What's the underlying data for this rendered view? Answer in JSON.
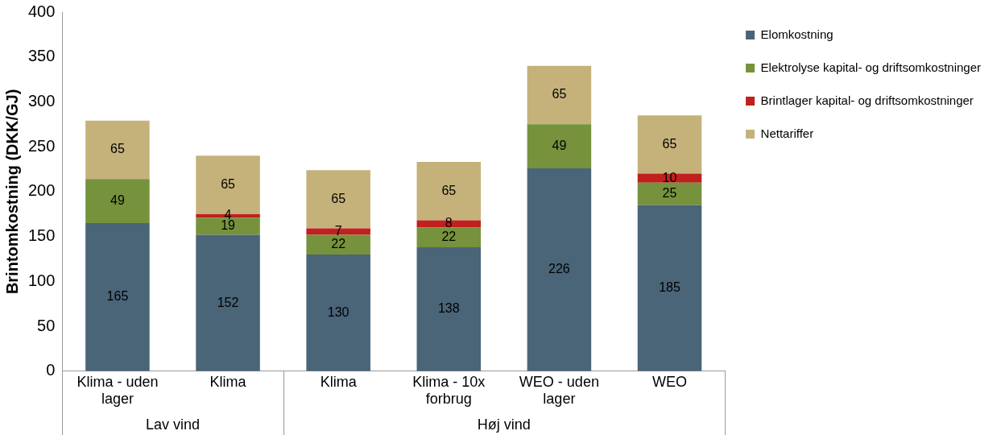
{
  "chart_data": {
    "type": "bar",
    "stacked": true,
    "ylabel": "Brintomkostning (DKK/GJ)",
    "categories": [
      "Klima - uden lager",
      "Klima",
      "Klima",
      "Klima - 10x forbrug",
      "WEO - uden lager",
      "WEO"
    ],
    "series": [
      {
        "name": "Elomkostning",
        "color": "#4a6478",
        "values": [
          165,
          152,
          130,
          138,
          226,
          185
        ]
      },
      {
        "name": "Elektrolyse kapital- og driftsomkostninger",
        "color": "#76923c",
        "values": [
          49,
          19,
          22,
          22,
          49,
          25
        ]
      },
      {
        "name": "Brintlager kapital- og driftsomkostninger",
        "color": "#c0201e",
        "values": [
          null,
          4,
          7,
          8,
          null,
          10
        ]
      },
      {
        "name": "Nettariffer",
        "color": "#c4b27a",
        "values": [
          65,
          65,
          65,
          65,
          65,
          65
        ]
      }
    ],
    "ylim": [
      0,
      400
    ],
    "yticks": [
      0,
      50,
      100,
      150,
      200,
      250,
      300,
      350,
      400
    ],
    "annotations": [
      "Lav vind",
      "Høj vind"
    ],
    "data_labels": true,
    "legend": "top right",
    "grid": false
  }
}
